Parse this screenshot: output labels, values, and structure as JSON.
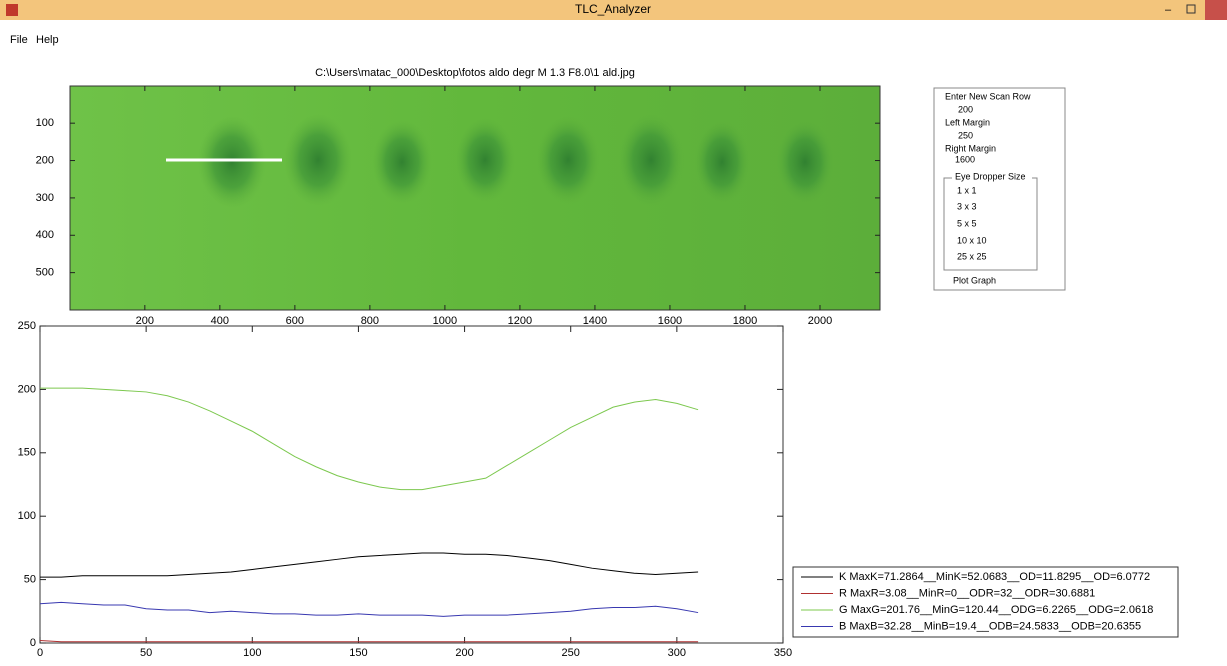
{
  "window": {
    "title": "TLC_Analyzer"
  },
  "menu": [
    "File",
    "Help"
  ],
  "image_axes": {
    "title": "C:\\Users\\matac_000\\Desktop\\fotos aldo degr M 1.3 F8.0\\1 ald.jpg",
    "xlim": [
      0.5,
      2160
    ],
    "ylim": [
      0.5,
      600
    ],
    "xticks": [
      200,
      400,
      600,
      800,
      1000,
      1200,
      1400,
      1600,
      1800,
      2000
    ],
    "yticks": [
      100,
      200,
      300,
      400,
      500
    ]
  },
  "panel": {
    "scan_row_label": "Enter New Scan Row",
    "scan_row": 200,
    "left_margin_label": "Left Margin",
    "left_margin": 250,
    "right_margin_label": "Right Margin",
    "right_margin": 1600,
    "eye_dropper_title": "Eye Dropper Size",
    "eye_dropper_options": [
      "1 x 1",
      "3 x 3",
      "5 x 5",
      "10 x 10",
      "25 x 25"
    ],
    "plot_button": "Plot Graph"
  },
  "chart_data": {
    "type": "line",
    "x": [
      0,
      10,
      20,
      30,
      40,
      50,
      60,
      70,
      80,
      90,
      100,
      110,
      120,
      130,
      140,
      150,
      160,
      170,
      180,
      190,
      200,
      210,
      220,
      230,
      240,
      250,
      260,
      270,
      280,
      290,
      300,
      310
    ],
    "series": [
      {
        "name": "K  MaxK=71.2864__MinK=52.0683__OD=11.8295__OD=6.0772",
        "color": "#000000",
        "values": [
          52,
          52,
          53,
          53,
          53,
          53,
          53,
          54,
          55,
          56,
          58,
          60,
          62,
          64,
          66,
          68,
          69,
          70,
          71,
          71,
          70,
          70,
          69,
          67,
          65,
          62,
          59,
          57,
          55,
          54,
          55,
          56
        ]
      },
      {
        "name": "R  MaxR=3.08__MinR=0__ODR=32__ODR=30.6881",
        "color": "#b03030",
        "values": [
          2,
          1,
          1,
          1,
          1,
          1,
          1,
          1,
          1,
          1,
          1,
          1,
          1,
          1,
          1,
          1,
          1,
          1,
          1,
          1,
          1,
          1,
          1,
          1,
          1,
          1,
          1,
          1,
          1,
          1,
          1,
          1
        ]
      },
      {
        "name": "G  MaxG=201.76__MinG=120.44__ODG=6.2265__ODG=2.0618",
        "color": "#7cc84e",
        "values": [
          201,
          201,
          201,
          200,
          199,
          198,
          195,
          190,
          183,
          175,
          167,
          157,
          147,
          139,
          132,
          127,
          123,
          121,
          121,
          124,
          127,
          130,
          140,
          150,
          160,
          170,
          178,
          186,
          190,
          192,
          189,
          184
        ]
      },
      {
        "name": "B  MaxB=32.28__MinB=19.4__ODB=24.5833__ODB=20.6355",
        "color": "#3838b0",
        "values": [
          31,
          32,
          31,
          30,
          30,
          27,
          26,
          26,
          24,
          25,
          24,
          23,
          23,
          22,
          22,
          23,
          22,
          22,
          22,
          21,
          22,
          22,
          22,
          23,
          24,
          25,
          27,
          28,
          28,
          29,
          27,
          24
        ]
      }
    ],
    "xlim": [
      0,
      350
    ],
    "ylim": [
      0,
      250
    ],
    "xticks": [
      0,
      50,
      100,
      150,
      200,
      250,
      300,
      350
    ],
    "yticks": [
      0,
      50,
      100,
      150,
      200,
      250
    ],
    "legend": "lower right"
  }
}
